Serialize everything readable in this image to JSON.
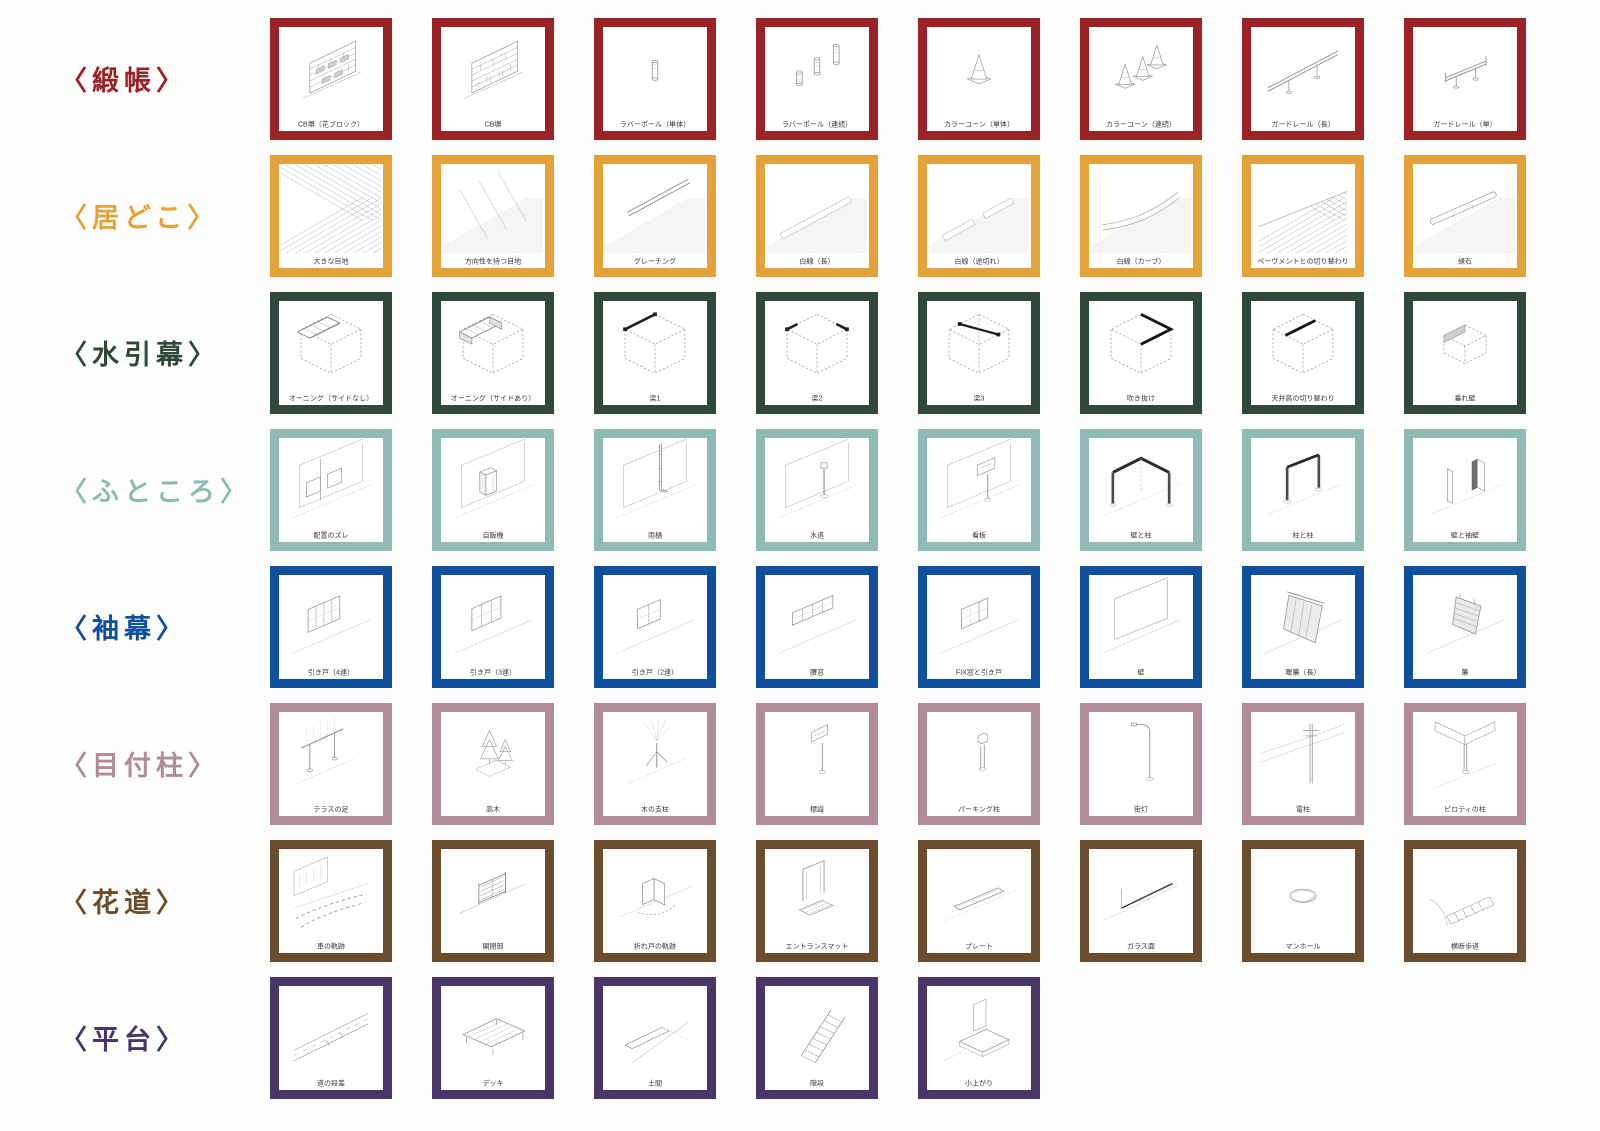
{
  "page": {
    "background": "#fdfdfc"
  },
  "rows": [
    {
      "label": "〈緞帳〉",
      "color": "#9b2226",
      "items": [
        {
          "caption": "CB塀（花ブロック）",
          "sketch": "cb-wall-flower"
        },
        {
          "caption": "CB塀",
          "sketch": "cb-wall"
        },
        {
          "caption": "ラバーポール（単体）",
          "sketch": "pole-single"
        },
        {
          "caption": "ラバーポール（連続）",
          "sketch": "pole-multi"
        },
        {
          "caption": "カラーコーン（単体）",
          "sketch": "cone-single"
        },
        {
          "caption": "カラーコーン（連続）",
          "sketch": "cone-multi"
        },
        {
          "caption": "ガードレール（長）",
          "sketch": "guardrail-long"
        },
        {
          "caption": "ガードレール（単）",
          "sketch": "guardrail-short"
        }
      ]
    },
    {
      "label": "〈居どこ〉",
      "color": "#e4a23a",
      "items": [
        {
          "caption": "大きな目地",
          "sketch": "grid-large"
        },
        {
          "caption": "方向性を持つ目地",
          "sketch": "grid-directional"
        },
        {
          "caption": "グレーチング",
          "sketch": "grating"
        },
        {
          "caption": "白線（長）",
          "sketch": "line-long"
        },
        {
          "caption": "白線（途切れ）",
          "sketch": "line-broken"
        },
        {
          "caption": "白線（カーブ）",
          "sketch": "line-curve"
        },
        {
          "caption": "ペーヴメントとの切り替わり",
          "sketch": "pavement-switch"
        },
        {
          "caption": "縁石",
          "sketch": "curb"
        }
      ]
    },
    {
      "label": "〈水引幕〉",
      "color": "#2f4a3d",
      "items": [
        {
          "caption": "オーニング（サイドなし）",
          "sketch": "awning-noside"
        },
        {
          "caption": "オーニング（サイドあり）",
          "sketch": "awning-side"
        },
        {
          "caption": "梁1",
          "sketch": "beam1"
        },
        {
          "caption": "梁2",
          "sketch": "beam2"
        },
        {
          "caption": "梁3",
          "sketch": "beam3"
        },
        {
          "caption": "吹き抜け",
          "sketch": "void"
        },
        {
          "caption": "天井高の切り替わり",
          "sketch": "ceiling-change"
        },
        {
          "caption": "垂れ壁",
          "sketch": "hanging-wall"
        }
      ]
    },
    {
      "label": "〈ふところ〉",
      "color": "#8ebcb4",
      "items": [
        {
          "caption": "配置のズレ",
          "sketch": "facade-offset"
        },
        {
          "caption": "自販機",
          "sketch": "vending"
        },
        {
          "caption": "雨樋",
          "sketch": "gutter"
        },
        {
          "caption": "水道",
          "sketch": "water"
        },
        {
          "caption": "看板",
          "sketch": "signboard"
        },
        {
          "caption": "壁と柱",
          "sketch": "wall-column"
        },
        {
          "caption": "柱と柱",
          "sketch": "column-column"
        },
        {
          "caption": "壁と袖壁",
          "sketch": "wall-wing"
        }
      ]
    },
    {
      "label": "〈袖幕〉",
      "color": "#0e4f9e",
      "items": [
        {
          "caption": "引き戸（4連）",
          "sketch": "sliding4"
        },
        {
          "caption": "引き戸（3連）",
          "sketch": "sliding3"
        },
        {
          "caption": "引き戸（2連）",
          "sketch": "sliding2"
        },
        {
          "caption": "腰窓",
          "sketch": "window"
        },
        {
          "caption": "FIX窓と引き戸",
          "sketch": "fix-window"
        },
        {
          "caption": "壁",
          "sketch": "wall-plain"
        },
        {
          "caption": "暖簾（長）",
          "sketch": "noren-long"
        },
        {
          "caption": "簾",
          "sketch": "sudare"
        }
      ]
    },
    {
      "label": "〈目付柱〉",
      "color": "#b18b95",
      "items": [
        {
          "caption": "テラスの足",
          "sketch": "terrace-legs"
        },
        {
          "caption": "高木",
          "sketch": "tree"
        },
        {
          "caption": "木の支柱",
          "sketch": "tree-support"
        },
        {
          "caption": "標識",
          "sketch": "sign"
        },
        {
          "caption": "パーキング柱",
          "sketch": "parking-post"
        },
        {
          "caption": "街灯",
          "sketch": "streetlamp"
        },
        {
          "caption": "電柱",
          "sketch": "utility-pole"
        },
        {
          "caption": "ピロティの柱",
          "sketch": "piloti"
        }
      ]
    },
    {
      "label": "〈花道〉",
      "color": "#6b4d2c",
      "items": [
        {
          "caption": "車の軌跡",
          "sketch": "car-track"
        },
        {
          "caption": "開閉部",
          "sketch": "gate"
        },
        {
          "caption": "折れ戸の軌跡",
          "sketch": "folding-track"
        },
        {
          "caption": "エントランスマット",
          "sketch": "entrance-mat"
        },
        {
          "caption": "プレート",
          "sketch": "plate"
        },
        {
          "caption": "ガラス面",
          "sketch": "glass-face"
        },
        {
          "caption": "マンホール",
          "sketch": "manhole"
        },
        {
          "caption": "横断歩道",
          "sketch": "crosswalk"
        }
      ]
    },
    {
      "label": "〈平台〉",
      "color": "#4a3568",
      "items": [
        {
          "caption": "道の段差",
          "sketch": "road-step"
        },
        {
          "caption": "デッキ",
          "sketch": "deck"
        },
        {
          "caption": "土間",
          "sketch": "doma"
        },
        {
          "caption": "階段",
          "sketch": "stairs"
        },
        {
          "caption": "小上がり",
          "sketch": "koagari"
        }
      ]
    }
  ]
}
